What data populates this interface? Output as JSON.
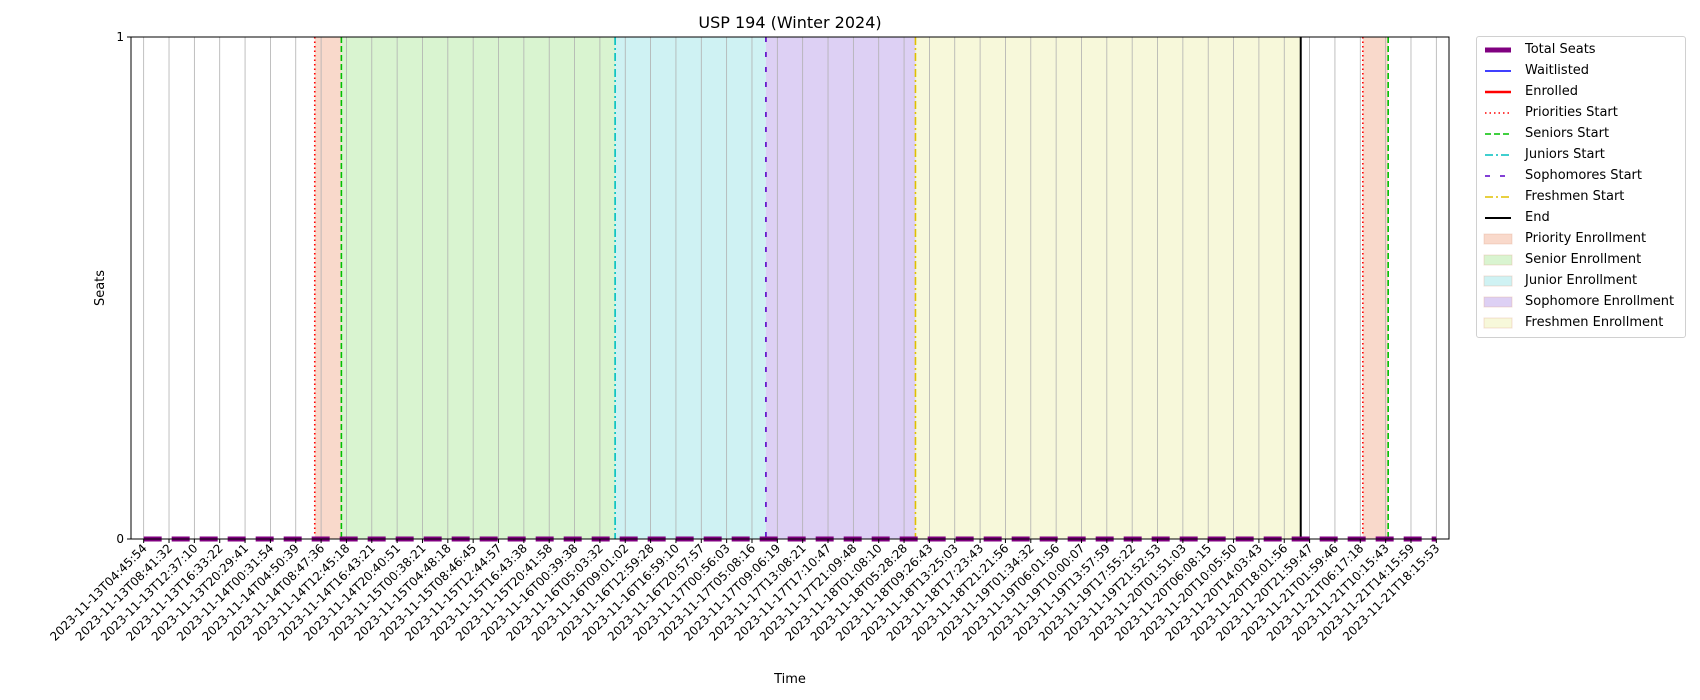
{
  "chart_data": {
    "type": "line",
    "title": "USP 194 (Winter 2024)",
    "xlabel": "Time",
    "ylabel": "Seats",
    "ylim": [
      0,
      1
    ],
    "yticks": [
      "0",
      "1"
    ],
    "grid": "vertical",
    "legend_position": "outside-right",
    "x": [
      "2023-11-13T04:45:54",
      "2023-11-13T08:41:32",
      "2023-11-13T12:37:10",
      "2023-11-13T16:33:22",
      "2023-11-13T20:29:41",
      "2023-11-14T00:31:54",
      "2023-11-14T04:50:39",
      "2023-11-14T08:47:36",
      "2023-11-14T12:45:18",
      "2023-11-14T16:43:21",
      "2023-11-14T20:40:51",
      "2023-11-15T00:38:21",
      "2023-11-15T04:48:18",
      "2023-11-15T08:46:45",
      "2023-11-15T12:44:57",
      "2023-11-15T16:43:38",
      "2023-11-15T20:41:58",
      "2023-11-16T00:39:38",
      "2023-11-16T05:03:32",
      "2023-11-16T09:01:02",
      "2023-11-16T12:59:28",
      "2023-11-16T16:59:10",
      "2023-11-16T20:57:57",
      "2023-11-17T00:56:03",
      "2023-11-17T05:08:16",
      "2023-11-17T09:06:19",
      "2023-11-17T13:08:21",
      "2023-11-17T17:10:47",
      "2023-11-17T21:09:48",
      "2023-11-18T01:08:10",
      "2023-11-18T05:28:28",
      "2023-11-18T09:26:43",
      "2023-11-18T13:25:03",
      "2023-11-18T17:23:43",
      "2023-11-18T21:21:56",
      "2023-11-19T01:34:32",
      "2023-11-19T06:01:56",
      "2023-11-19T10:00:07",
      "2023-11-19T13:57:59",
      "2023-11-19T17:55:22",
      "2023-11-19T21:52:53",
      "2023-11-20T01:51:03",
      "2023-11-20T06:08:15",
      "2023-11-20T10:05:50",
      "2023-11-20T14:03:43",
      "2023-11-20T18:01:56",
      "2023-11-20T21:59:47",
      "2023-11-21T01:59:46",
      "2023-11-21T06:17:18",
      "2023-11-21T10:15:43",
      "2023-11-21T14:15:59",
      "2023-11-21T18:15:53"
    ],
    "series": [
      {
        "name": "Total Seats",
        "color": "#800080",
        "style": "thick-dashed",
        "values": [
          0,
          0,
          0,
          0,
          0,
          0,
          0,
          0,
          0,
          0,
          0,
          0,
          0,
          0,
          0,
          0,
          0,
          0,
          0,
          0,
          0,
          0,
          0,
          0,
          0,
          0,
          0,
          0,
          0,
          0,
          0,
          0,
          0,
          0,
          0,
          0,
          0,
          0,
          0,
          0,
          0,
          0,
          0,
          0,
          0,
          0,
          0,
          0,
          0,
          0,
          0,
          0
        ]
      },
      {
        "name": "Waitlisted",
        "color": "#0000ff",
        "style": "solid",
        "values": [
          0,
          0,
          0,
          0,
          0,
          0,
          0,
          0,
          0,
          0,
          0,
          0,
          0,
          0,
          0,
          0,
          0,
          0,
          0,
          0,
          0,
          0,
          0,
          0,
          0,
          0,
          0,
          0,
          0,
          0,
          0,
          0,
          0,
          0,
          0,
          0,
          0,
          0,
          0,
          0,
          0,
          0,
          0,
          0,
          0,
          0,
          0,
          0,
          0,
          0,
          0,
          0
        ]
      },
      {
        "name": "Enrolled",
        "color": "#ff0000",
        "style": "solid-thick",
        "values": [
          0,
          0,
          0,
          0,
          0,
          0,
          0,
          0,
          0,
          0,
          0,
          0,
          0,
          0,
          0,
          0,
          0,
          0,
          0,
          0,
          0,
          0,
          0,
          0,
          0,
          0,
          0,
          0,
          0,
          0,
          0,
          0,
          0,
          0,
          0,
          0,
          0,
          0,
          0,
          0,
          0,
          0,
          0,
          0,
          0,
          0,
          0,
          0,
          0,
          0,
          0,
          0
        ]
      }
    ],
    "markers": [
      {
        "name": "Priorities Start",
        "color": "#ff0000",
        "style": "dotted",
        "x": 6.75
      },
      {
        "name": "Seniors Start",
        "color": "#00c000",
        "style": "dashed",
        "x": 7.8
      },
      {
        "name": "Juniors Start",
        "color": "#00bfbf",
        "style": "dashdot",
        "x": 18.6
      },
      {
        "name": "Sophomores Start",
        "color": "#5a00c8",
        "style": "loosedash",
        "x": 24.55
      },
      {
        "name": "Freshmen Start",
        "color": "#e0c000",
        "style": "dashdot",
        "x": 30.45
      },
      {
        "name": "End",
        "color": "#000000",
        "style": "solid",
        "x": 45.65
      },
      {
        "name": "Priorities Start",
        "color": "#ff0000",
        "style": "dotted",
        "x": 48.1,
        "legend": false
      },
      {
        "name": "Seniors Start",
        "color": "#00c000",
        "style": "dashed",
        "x": 49.1,
        "legend": false
      }
    ],
    "regions": [
      {
        "name": "Priority Enrollment",
        "color": "#f9d9cb",
        "start": 6.75,
        "end": 7.8
      },
      {
        "name": "Senior Enrollment",
        "color": "#d9f4d0",
        "start": 7.8,
        "end": 18.6
      },
      {
        "name": "Junior Enrollment",
        "color": "#cff2f3",
        "start": 18.6,
        "end": 24.55
      },
      {
        "name": "Sophomore Enrollment",
        "color": "#ddd0f4",
        "start": 24.55,
        "end": 30.45
      },
      {
        "name": "Freshmen Enrollment",
        "color": "#f7f8da",
        "start": 30.45,
        "end": 45.65
      },
      {
        "name": "Priority Enrollment",
        "color": "#f9d9cb",
        "start": 48.1,
        "end": 49.1,
        "legend": false
      }
    ],
    "legend": [
      {
        "label": "Total Seats",
        "kind": "line",
        "color": "#800080",
        "style": "thick"
      },
      {
        "label": "Waitlisted",
        "kind": "line",
        "color": "#0000ff",
        "style": "solid"
      },
      {
        "label": "Enrolled",
        "kind": "line",
        "color": "#ff0000",
        "style": "solid-thick"
      },
      {
        "label": "Priorities Start",
        "kind": "line",
        "color": "#ff0000",
        "style": "dotted"
      },
      {
        "label": "Seniors Start",
        "kind": "line",
        "color": "#00c000",
        "style": "dashed"
      },
      {
        "label": "Juniors Start",
        "kind": "line",
        "color": "#00bfbf",
        "style": "dashdot"
      },
      {
        "label": "Sophomores Start",
        "kind": "line",
        "color": "#5a00c8",
        "style": "loosedash"
      },
      {
        "label": "Freshmen Start",
        "kind": "line",
        "color": "#e0c000",
        "style": "dashdot"
      },
      {
        "label": "End",
        "kind": "line",
        "color": "#000000",
        "style": "solid"
      },
      {
        "label": "Priority Enrollment",
        "kind": "patch",
        "color": "#f9d9cb"
      },
      {
        "label": "Senior Enrollment",
        "kind": "patch",
        "color": "#d9f4d0"
      },
      {
        "label": "Junior Enrollment",
        "kind": "patch",
        "color": "#cff2f3"
      },
      {
        "label": "Sophomore Enrollment",
        "kind": "patch",
        "color": "#ddd0f4"
      },
      {
        "label": "Freshmen Enrollment",
        "kind": "patch",
        "color": "#f7f8da"
      }
    ]
  }
}
